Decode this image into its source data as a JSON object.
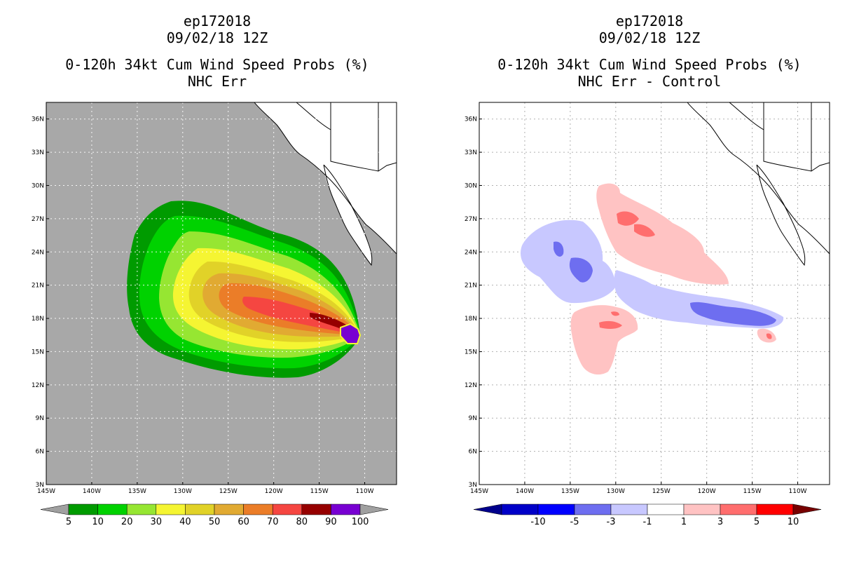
{
  "panels": [
    {
      "storm_id": "ep172018",
      "datetime": "09/02/18 12Z",
      "product": "0-120h 34kt Cum Wind Speed Probs (%)",
      "subtitle": "NHC Err",
      "colorbar": {
        "labels": [
          "5",
          "10",
          "20",
          "30",
          "40",
          "50",
          "60",
          "70",
          "80",
          "90",
          "100"
        ],
        "colors": [
          "#009b00",
          "#00d200",
          "#96e632",
          "#f5f532",
          "#e1d228",
          "#e1aa32",
          "#eb7d28",
          "#f54641",
          "#960000",
          "#7800d2"
        ],
        "under_color": "#a0a0a0",
        "over_color": "#a0a0a0"
      }
    },
    {
      "storm_id": "ep172018",
      "datetime": "09/02/18 12Z",
      "product": "0-120h 34kt Cum Wind Speed Probs (%)",
      "subtitle": "NHC Err - Control",
      "colorbar": {
        "labels": [
          "-10",
          "-5",
          "-3",
          "-1",
          "1",
          "3",
          "5",
          "10"
        ],
        "colors": [
          "#0000c8",
          "#0000ff",
          "#6e6ef0",
          "#c8c8ff",
          "#ffffff",
          "#ffc3c3",
          "#ff6e6e",
          "#ff0000"
        ],
        "under_color": "#00008c",
        "over_color": "#780000"
      }
    }
  ],
  "map": {
    "lon_ticks": [
      "145W",
      "140W",
      "135W",
      "130W",
      "125W",
      "120W",
      "115W",
      "110W"
    ],
    "lon_values": [
      -145,
      -140,
      -135,
      -130,
      -125,
      -120,
      -115,
      -110
    ],
    "lat_ticks": [
      "3N",
      "6N",
      "9N",
      "12N",
      "15N",
      "18N",
      "21N",
      "24N",
      "27N",
      "30N",
      "33N",
      "36N"
    ],
    "lat_values": [
      3,
      6,
      9,
      12,
      15,
      18,
      21,
      24,
      27,
      30,
      33,
      36
    ],
    "lon_range": [
      -145,
      -106.5
    ],
    "lat_range": [
      3,
      37.5
    ],
    "land_color": "#ffffff",
    "ocean_color_left": "#a8a8a8",
    "coast_color": "#000000"
  }
}
